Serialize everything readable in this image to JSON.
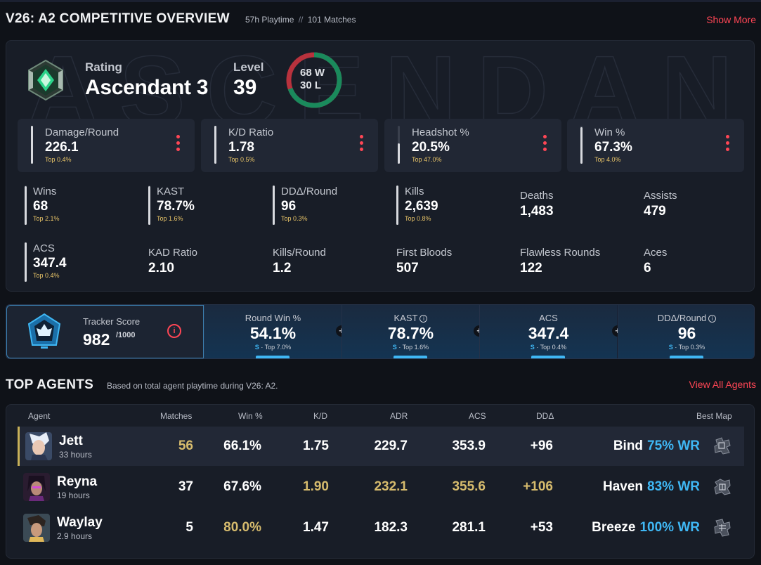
{
  "overview": {
    "title": "V26: A2 COMPETITIVE OVERVIEW",
    "playtime": "57h Playtime",
    "separator": "//",
    "matches": "101 Matches",
    "show_more": "Show More"
  },
  "rating": {
    "label": "Rating",
    "rank": "Ascendant 3",
    "level_label": "Level",
    "level": "39",
    "wins": "68 W",
    "losses": "30 L",
    "win_fraction": 0.694
  },
  "featured_stats": [
    {
      "label": "Damage/Round",
      "value": "226.1",
      "percentile": "Top 0.4%",
      "fill": 0.996
    },
    {
      "label": "K/D Ratio",
      "value": "1.78",
      "percentile": "Top 0.5%",
      "fill": 0.995
    },
    {
      "label": "Headshot %",
      "value": "20.5%",
      "percentile": "Top 47.0%",
      "fill": 0.53
    },
    {
      "label": "Win %",
      "value": "67.3%",
      "percentile": "Top 4.0%",
      "fill": 0.96
    }
  ],
  "stats": [
    {
      "label": "Wins",
      "value": "68",
      "percentile": "Top 2.1%",
      "fill": 0.979
    },
    {
      "label": "KAST",
      "value": "78.7%",
      "percentile": "Top 1.6%",
      "fill": 0.984
    },
    {
      "label": "DDΔ/Round",
      "value": "96",
      "percentile": "Top 0.3%",
      "fill": 0.997
    },
    {
      "label": "Kills",
      "value": "2,639",
      "percentile": "Top 0.8%",
      "fill": 0.992
    },
    {
      "label": "Deaths",
      "value": "1,483"
    },
    {
      "label": "Assists",
      "value": "479"
    },
    {
      "label": "ACS",
      "value": "347.4",
      "percentile": "Top 0.4%",
      "fill": 0.996
    },
    {
      "label": "KAD Ratio",
      "value": "2.10"
    },
    {
      "label": "Kills/Round",
      "value": "1.2"
    },
    {
      "label": "First Bloods",
      "value": "507"
    },
    {
      "label": "Flawless Rounds",
      "value": "122"
    },
    {
      "label": "Aces",
      "value": "6"
    }
  ],
  "tracker": {
    "label": "Tracker Score",
    "score": "982",
    "max": "/1000",
    "info_icon": "i",
    "stats": [
      {
        "label": "Round Win %",
        "value": "54.1%",
        "grade": "S",
        "percentile": "· Top 7.0%",
        "info": false
      },
      {
        "label": "KAST",
        "value": "78.7%",
        "grade": "S",
        "percentile": "· Top 1.6%",
        "info": true
      },
      {
        "label": "ACS",
        "value": "347.4",
        "grade": "S",
        "percentile": "· Top 0.4%",
        "info": false
      },
      {
        "label": "DDΔ/Round",
        "value": "96",
        "grade": "S",
        "percentile": "· Top 0.3%",
        "info": true
      }
    ]
  },
  "agents_section": {
    "title": "TOP AGENTS",
    "subtitle": "Based on total agent playtime during V26: A2.",
    "view_all": "View All Agents"
  },
  "agents_table": {
    "headers": {
      "agent": "Agent",
      "matches": "Matches",
      "win": "Win %",
      "kd": "K/D",
      "adr": "ADR",
      "acs": "ACS",
      "dd": "DDΔ",
      "map": "Best Map"
    },
    "rows": [
      {
        "name": "Jett",
        "hours": "33 hours",
        "matches": "56",
        "win": "66.1%",
        "kd": "1.75",
        "adr": "229.7",
        "acs": "353.9",
        "dd": "+96",
        "map": "Bind",
        "map_wr": "75% WR",
        "highlight": [
          "matches"
        ]
      },
      {
        "name": "Reyna",
        "hours": "19 hours",
        "matches": "37",
        "win": "67.6%",
        "kd": "1.90",
        "adr": "232.1",
        "acs": "355.6",
        "dd": "+106",
        "map": "Haven",
        "map_wr": "83% WR",
        "highlight": [
          "kd",
          "adr",
          "acs",
          "dd"
        ]
      },
      {
        "name": "Waylay",
        "hours": "2.9 hours",
        "matches": "5",
        "win": "80.0%",
        "kd": "1.47",
        "adr": "182.3",
        "acs": "281.1",
        "dd": "+53",
        "map": "Breeze",
        "map_wr": "100% WR",
        "highlight": [
          "win"
        ]
      }
    ]
  },
  "colors": {
    "accent_red": "#ff4655",
    "gold": "#d6bb6d",
    "blue": "#3fb7f4",
    "win_green": "#1a8a5c",
    "loss_red": "#b8323d"
  }
}
